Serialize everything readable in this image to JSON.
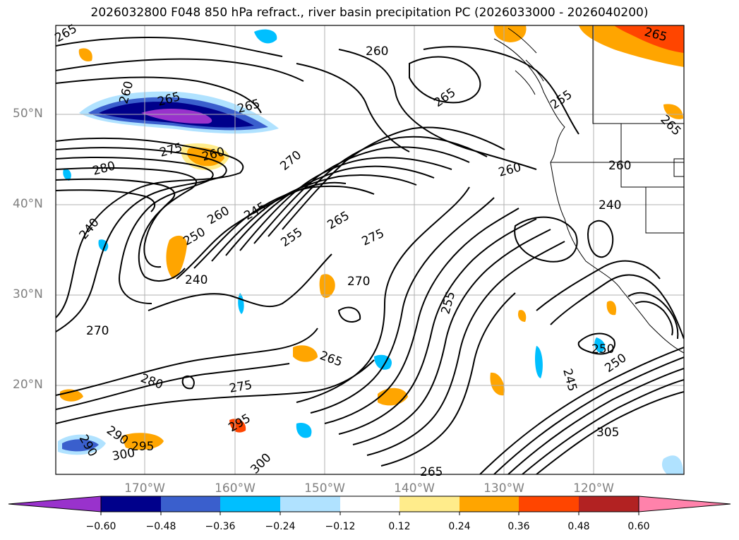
{
  "title": "2026032800 F048 850 hPa refract., river basin precipitation PC (2026033000 - 2026040200)",
  "lat_labels": [
    "50°N",
    "40°N",
    "30°N",
    "20°N"
  ],
  "lon_labels": [
    "170°W",
    "160°W",
    "150°W",
    "140°W",
    "130°W",
    "120°W"
  ],
  "colorbar": {
    "ticks": [
      "−0.60",
      "−0.48",
      "−0.36",
      "−0.24",
      "−0.12",
      "0.12",
      "0.24",
      "0.36",
      "0.48",
      "0.60"
    ],
    "colors": [
      "#9932cc",
      "#00008b",
      "#3a5fcd",
      "#00bfff",
      "#b0e2ff",
      "#ffffff",
      "#ffec8b",
      "#ffa500",
      "#ff4500",
      "#b22222",
      "#ff82ab"
    ]
  },
  "contour_labels": [
    "265",
    "260",
    "265",
    "255",
    "265",
    "265",
    "260",
    "275",
    "260",
    "270",
    "260",
    "280",
    "265",
    "240",
    "260",
    "245",
    "265",
    "240",
    "250",
    "255",
    "275",
    "240",
    "270",
    "270",
    "255",
    "265",
    "250",
    "280",
    "275",
    "245",
    "250",
    "290",
    "295",
    "290",
    "300",
    "300",
    "295",
    "305",
    "265",
    "260",
    "265"
  ]
}
